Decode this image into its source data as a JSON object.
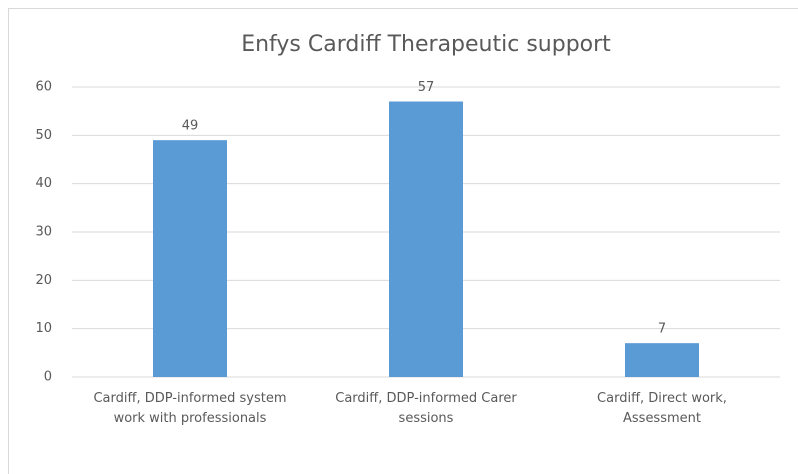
{
  "chart_data": {
    "type": "bar",
    "title": "Enfys Cardiff Therapeutic support",
    "categories": [
      "Cardiff, DDP-informed system work with professionals",
      "Cardiff, DDP-informed Carer sessions",
      "Cardiff, Direct work, Assessment"
    ],
    "values": [
      49,
      57,
      7
    ],
    "color": "#5b9bd5",
    "ylim": [
      0,
      60
    ],
    "yticks": [
      0,
      10,
      20,
      30,
      40,
      50,
      60
    ],
    "grid": true
  }
}
